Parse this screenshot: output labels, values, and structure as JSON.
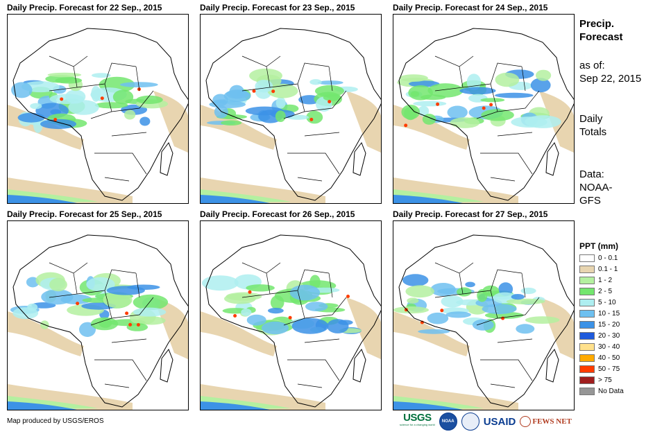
{
  "panels": [
    {
      "title": "Daily Precip. Forecast for 22 Sep., 2015"
    },
    {
      "title": "Daily Precip. Forecast for 23 Sep., 2015"
    },
    {
      "title": "Daily Precip. Forecast for 24 Sep., 2015"
    },
    {
      "title": "Daily Precip. Forecast for 25 Sep., 2015"
    },
    {
      "title": "Daily Precip. Forecast for 26 Sep., 2015"
    },
    {
      "title": "Daily Precip. Forecast for 27 Sep., 2015"
    }
  ],
  "sidebar": {
    "heading_line1": "Precip.",
    "heading_line2": "Forecast",
    "asof_label": "as of:",
    "asof_date": "Sep 22, 2015",
    "totals_line1": "Daily",
    "totals_line2": "Totals",
    "data_label": "Data:",
    "data_line1": "NOAA-",
    "data_line2": "GFS"
  },
  "legend": {
    "title": "PPT (mm)",
    "items": [
      {
        "label": "0 - 0.1",
        "color": "#ffffff"
      },
      {
        "label": "0.1 - 1",
        "color": "#e8d5b0"
      },
      {
        "label": "1 - 2",
        "color": "#b4f0a0"
      },
      {
        "label": "2 - 5",
        "color": "#73e66e"
      },
      {
        "label": "5 - 10",
        "color": "#aeeef0"
      },
      {
        "label": "10 - 15",
        "color": "#6ec0f0"
      },
      {
        "label": "15 - 20",
        "color": "#3c92e6"
      },
      {
        "label": "20 - 30",
        "color": "#1e5adc"
      },
      {
        "label": "30 - 40",
        "color": "#ffe18c"
      },
      {
        "label": "40 - 50",
        "color": "#ffaa00"
      },
      {
        "label": "50 - 75",
        "color": "#ff3c00"
      },
      {
        "label": "> 75",
        "color": "#a01e1e"
      },
      {
        "label": "No Data",
        "color": "#969696"
      }
    ]
  },
  "credit": "Map produced by USGS/EROS",
  "logos": {
    "usgs": "USGS",
    "noaa": "NOAA",
    "usaid": "USAID",
    "fewsnet": "FEWS NET",
    "usgs_tagline": "science for a changing world"
  }
}
